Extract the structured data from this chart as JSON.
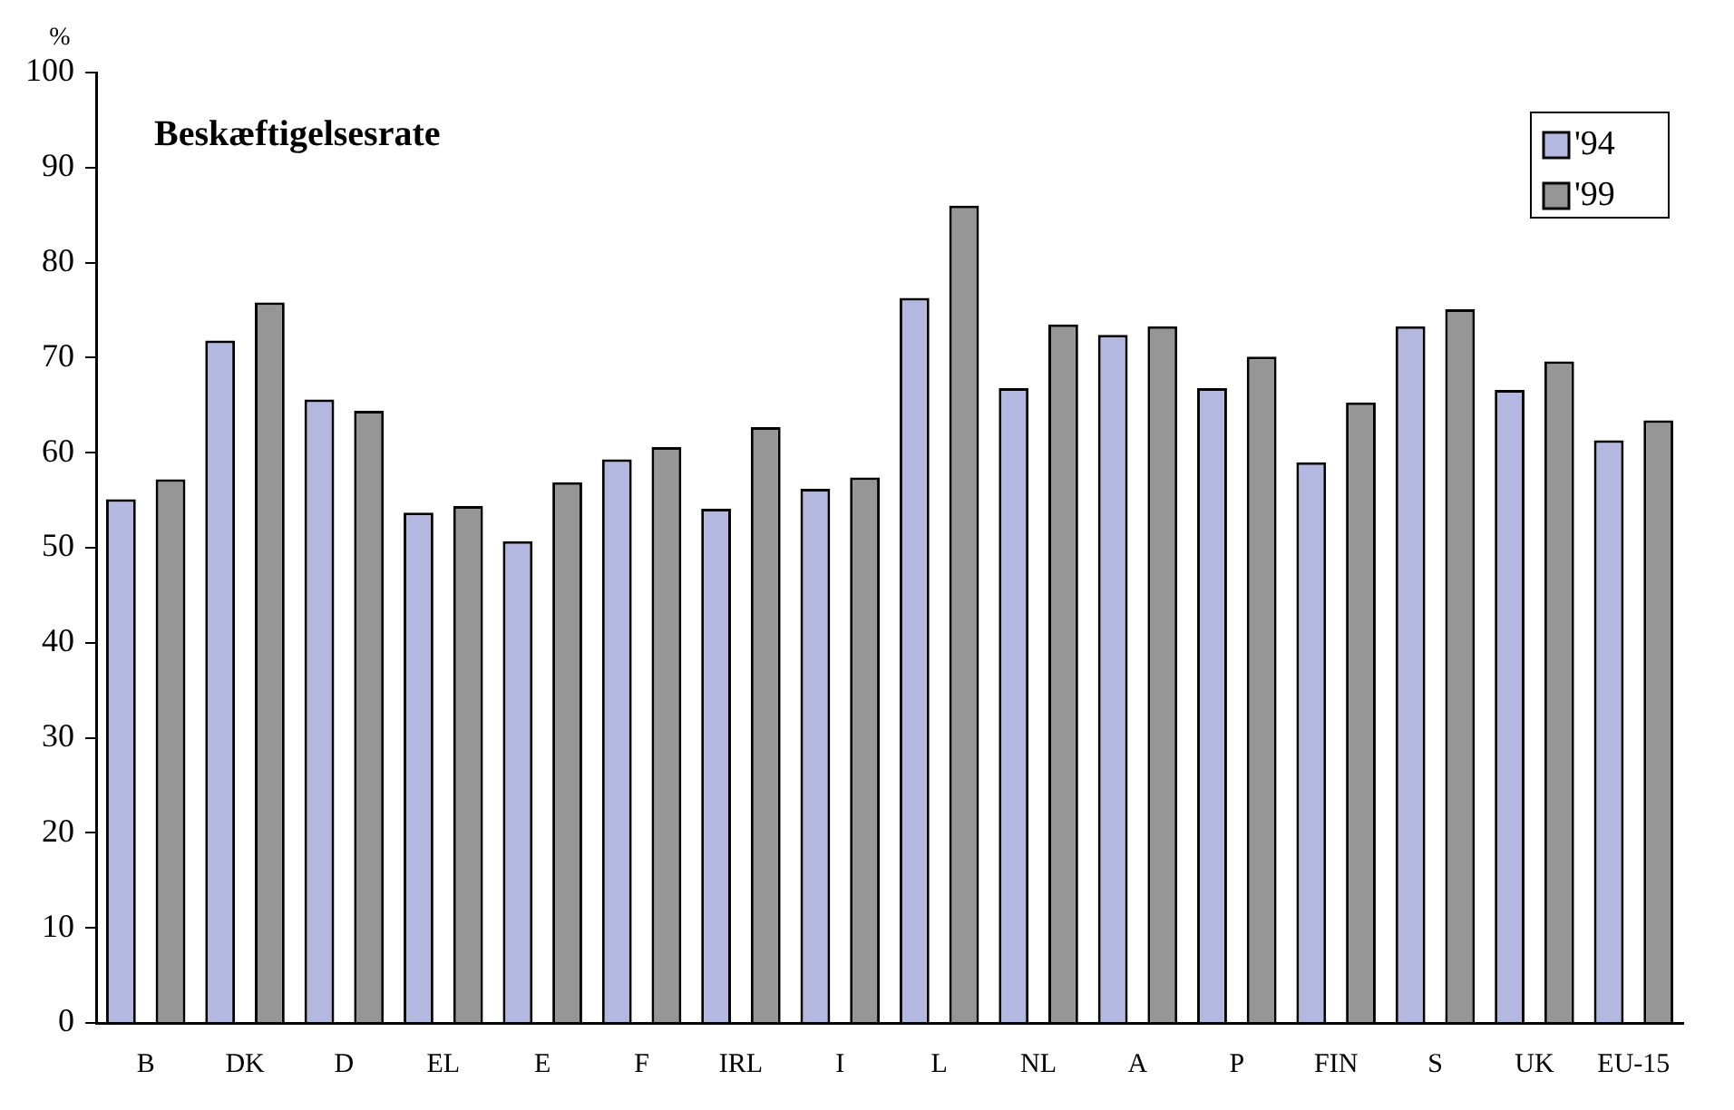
{
  "chart_data": {
    "type": "bar",
    "title": "Beskæftigelsesrate",
    "ylabel": "%",
    "categories": [
      "B",
      "DK",
      "D",
      "EL",
      "E",
      "F",
      "IRL",
      "I",
      "L",
      "NL",
      "A",
      "P",
      "FIN",
      "S",
      "UK",
      "EU-15"
    ],
    "series": [
      {
        "name": "'94",
        "color": "#b4b8e0",
        "values": [
          55.1,
          71.8,
          65.6,
          53.7,
          50.7,
          59.3,
          54.1,
          56.2,
          76.3,
          66.8,
          72.4,
          66.8,
          59.0,
          73.3,
          66.6,
          61.3
        ]
      },
      {
        "name": "'99",
        "color": "#969696",
        "values": [
          57.2,
          75.8,
          64.4,
          54.4,
          56.9,
          60.6,
          62.7,
          57.4,
          86.0,
          73.5,
          73.3,
          70.1,
          65.3,
          75.1,
          69.6,
          63.4
        ]
      }
    ],
    "ylim": [
      0,
      100
    ],
    "yticks": [
      0,
      10,
      20,
      30,
      40,
      50,
      60,
      70,
      80,
      90,
      100
    ],
    "grid": false,
    "legend": "top right"
  }
}
